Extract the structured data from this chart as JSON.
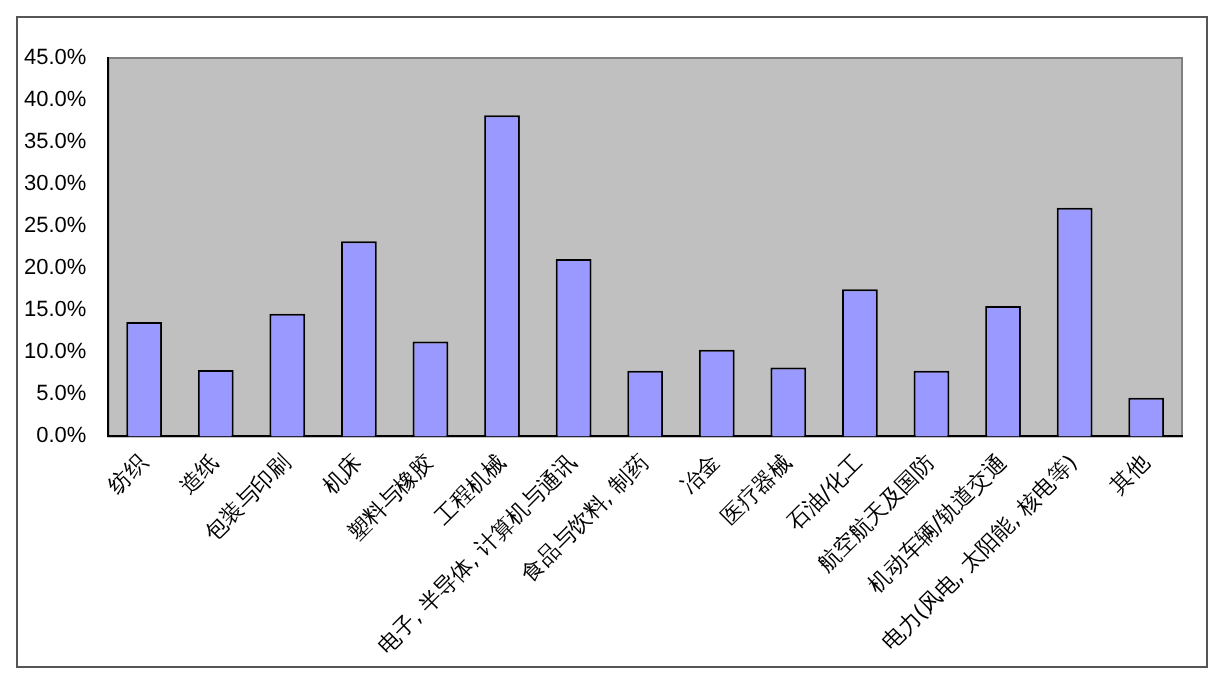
{
  "chart_data": {
    "type": "bar",
    "categories": [
      "纺织",
      "造纸",
      "包装与印刷",
      "机床",
      "塑料与橡胶",
      "工程机械",
      "电子, 半导体, 计算机与通讯",
      "食品与饮料, 制药",
      "冶金",
      "医疗器械",
      "石油/化工",
      "航空航天及国防",
      "机动车辆/轨道交通",
      "电力(风电, 太阳能, 核电等)",
      "其他"
    ],
    "values": [
      13.6,
      7.9,
      14.6,
      23.2,
      11.3,
      38.2,
      21.1,
      7.8,
      10.3,
      8.2,
      17.5,
      7.8,
      15.5,
      27.2,
      4.6
    ],
    "color": "#9999ff",
    "ylim": [
      0,
      45
    ],
    "yticks": [
      {
        "value": 0,
        "label": "0.0%"
      },
      {
        "value": 5,
        "label": "5.0%"
      },
      {
        "value": 10,
        "label": "10.0%"
      },
      {
        "value": 15,
        "label": "15.0%"
      },
      {
        "value": 20,
        "label": "20.0%"
      },
      {
        "value": 25,
        "label": "25.0%"
      },
      {
        "value": 30,
        "label": "30.0%"
      },
      {
        "value": 35,
        "label": "35.0%"
      },
      {
        "value": 40,
        "label": "40.0%"
      },
      {
        "value": 45,
        "label": "45.0%"
      }
    ],
    "grid": false,
    "legend": false
  }
}
